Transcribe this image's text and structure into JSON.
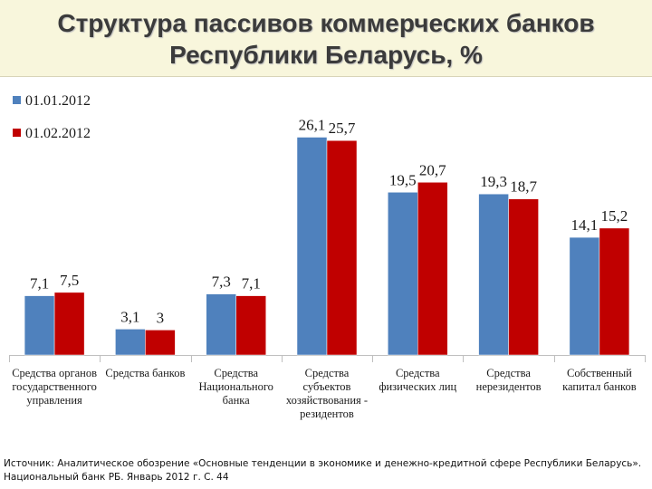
{
  "header": {
    "title": "Структура пассивов коммерческих банков\nРеспублики Беларусь, %"
  },
  "chart_data": {
    "type": "bar",
    "title": "Структура пассивов коммерческих банков Республики Беларусь, %",
    "xlabel": "",
    "ylabel": "",
    "ylim": [
      0,
      28
    ],
    "legend_position": "top-left",
    "categories": [
      "Средства органов\nгосударственного\nуправления",
      "Средства банков",
      "Средства\nНационального\nбанка",
      "Средства\nсубъектов\nхозяйствования -\nрезидентов",
      "Средства\nфизических лиц",
      "Средства\nнерезидентов",
      "Собственный\nкапитал банков"
    ],
    "series": [
      {
        "name": "01.01.2012",
        "color": "#4f81bd",
        "values": [
          7.1,
          3.1,
          7.3,
          26.1,
          19.5,
          19.3,
          14.1
        ],
        "labels": [
          "7,1",
          "3,1",
          "7,3",
          "26,1",
          "19,5",
          "19,3",
          "14,1"
        ]
      },
      {
        "name": "01.02.2012",
        "color": "#c00000",
        "values": [
          7.5,
          3,
          7.1,
          25.7,
          20.7,
          18.7,
          15.2
        ],
        "labels": [
          "7,5",
          "3",
          "7,1",
          "25,7",
          "20,7",
          "18,7",
          "15,2"
        ]
      }
    ]
  },
  "footer": {
    "source": "Источник: Аналитическое обозрение «Основные тенденции в экономике и денежно-кредитной сфере Республики Беларусь».\nНациональный банк РБ. Январь 2012 г. С. 44"
  }
}
